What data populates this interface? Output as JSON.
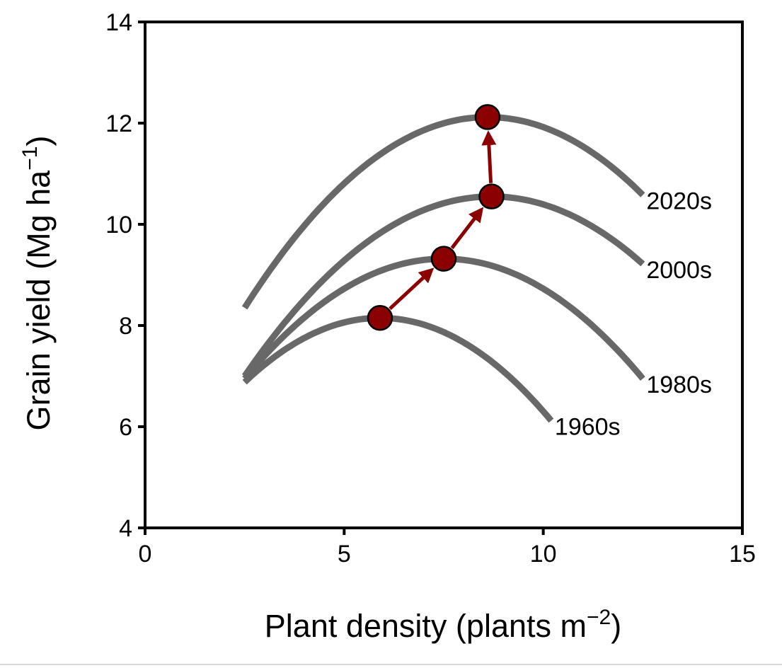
{
  "chart_data": {
    "type": "line",
    "title": "",
    "xlabel": {
      "main": "Plant density (plants m",
      "sup": "−2",
      "close": ")"
    },
    "ylabel": {
      "main": "Grain yield (Mg ha",
      "sup": "−1",
      "close": ")"
    },
    "xlim": [
      0,
      15
    ],
    "ylim": [
      4,
      14
    ],
    "xticks": [
      0,
      5,
      10,
      15
    ],
    "yticks": [
      4,
      6,
      8,
      10,
      12,
      14
    ],
    "grid": false,
    "line_color": "#686868",
    "marker_color": "#8b0000",
    "arrow_color": "#8b0000",
    "series": [
      {
        "name": "1960s",
        "x_start": 2.5,
        "x_end": 10.2,
        "x_opt": 5.9,
        "y_opt": 8.15,
        "y_at_start": 6.88
      },
      {
        "name": "1980s",
        "x_start": 2.5,
        "x_end": 12.5,
        "x_opt": 7.5,
        "y_opt": 9.32,
        "y_at_start": 6.95
      },
      {
        "name": "2000s",
        "x_start": 2.5,
        "x_end": 12.5,
        "x_opt": 8.7,
        "y_opt": 10.55,
        "y_at_start": 7.0
      },
      {
        "name": "2020s",
        "x_start": 2.5,
        "x_end": 12.5,
        "x_opt": 8.6,
        "y_opt": 12.12,
        "y_at_start": 8.35
      }
    ],
    "optimum_points": [
      {
        "series": "1960s",
        "x": 5.9,
        "y": 8.15
      },
      {
        "series": "1980s",
        "x": 7.5,
        "y": 9.32
      },
      {
        "series": "2000s",
        "x": 8.7,
        "y": 10.55
      },
      {
        "series": "2020s",
        "x": 8.6,
        "y": 12.12
      }
    ],
    "arrows": [
      {
        "from": [
          5.9,
          8.15
        ],
        "to": [
          7.5,
          9.32
        ]
      },
      {
        "from": [
          7.5,
          9.32
        ],
        "to": [
          8.7,
          10.55
        ]
      },
      {
        "from": [
          8.7,
          10.55
        ],
        "to": [
          8.6,
          12.12
        ]
      }
    ]
  }
}
